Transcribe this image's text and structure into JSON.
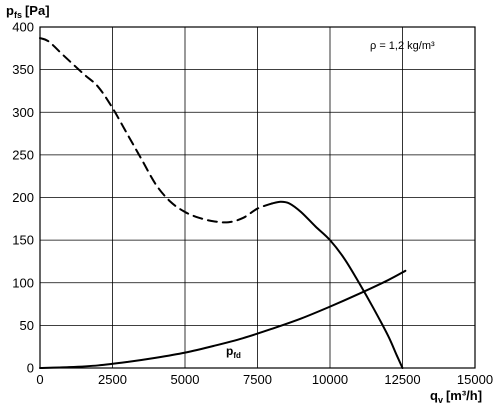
{
  "chart_data": {
    "type": "line",
    "ylabel": {
      "main": "p",
      "sub": "fs",
      "unit": "[Pa]"
    },
    "xlabel": {
      "main": "q",
      "sub": "v",
      "unit": "[m³/h]"
    },
    "xlim": [
      0,
      15000
    ],
    "ylim": [
      0,
      400
    ],
    "x_ticks": [
      0,
      2500,
      5000,
      7500,
      10000,
      12500,
      15000
    ],
    "y_ticks": [
      0,
      50,
      100,
      150,
      200,
      250,
      300,
      350,
      400
    ],
    "grid": true,
    "annotation": "ρ = 1,2 kg/m³",
    "series": [
      {
        "style": "dashed",
        "x": [
          0,
          300,
          800,
          1500,
          2000,
          2500,
          3000,
          3500,
          4000,
          4500,
          5000,
          5500,
          6000,
          6500,
          7000,
          7500,
          8000
        ],
        "y": [
          387,
          383,
          367,
          345,
          330,
          305,
          275,
          245,
          215,
          195,
          183,
          176,
          172,
          171,
          176,
          187,
          193
        ]
      },
      {
        "style": "solid",
        "x": [
          8000,
          8300,
          8600,
          9000,
          9500,
          10000,
          10500,
          11000,
          11500,
          12000,
          12300,
          12500
        ],
        "y": [
          193,
          195,
          193,
          183,
          166,
          150,
          128,
          100,
          70,
          38,
          15,
          0
        ]
      },
      {
        "name_main": "p",
        "name_sub": "fd",
        "style": "solid",
        "x": [
          0,
          1000,
          2000,
          3000,
          4000,
          5000,
          6000,
          7000,
          8000,
          9000,
          10000,
          11000,
          12000,
          12600
        ],
        "y": [
          0,
          1,
          3,
          7,
          12,
          18,
          26,
          35,
          46,
          58,
          72,
          87,
          103,
          114
        ]
      }
    ]
  }
}
